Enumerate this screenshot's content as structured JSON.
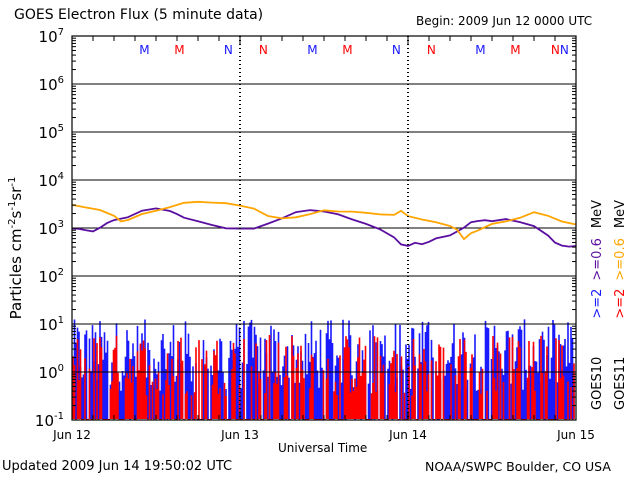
{
  "chart_data": {
    "type": "line",
    "title": "GOES Electron Flux (5 minute data)",
    "begin_label": "Begin: 2009 Jun 12 0000 UTC",
    "xlabel": "Universal Time",
    "ylabel": "Particles cm⁻²s⁻¹sr⁻¹",
    "ylabel_parts": {
      "base": "Particles cm",
      "e1": "-2",
      "s": "s",
      "e2": "-1",
      "sr": "sr",
      "e3": "-1"
    },
    "yscale": "log",
    "ylim_exp": [
      -1,
      7
    ],
    "ytick_exps": [
      7,
      6,
      5,
      4,
      3,
      2,
      1,
      0,
      -1
    ],
    "xlim_hours": [
      0,
      72
    ],
    "xtick_labels": [
      {
        "hour": 0,
        "label": "Jun 12"
      },
      {
        "hour": 24,
        "label": "Jun 13"
      },
      {
        "hour": 48,
        "label": "Jun 14"
      },
      {
        "hour": 72,
        "label": "Jun 15"
      }
    ],
    "threshold_line": {
      "value": 1000,
      "style": "dashed"
    },
    "grid": "horizontal lines at 10^0, 10^1, 10^2, 10^3, 10^4, 10^5, 10^6",
    "markers": [
      {
        "hour": 7.2,
        "label": "M",
        "color": "#1a1aff"
      },
      {
        "hour": 12.2,
        "label": "M",
        "color": "#ff0000"
      },
      {
        "hour": 19.2,
        "label": "N",
        "color": "#1a1aff"
      },
      {
        "hour": 24.2,
        "label": "N",
        "color": "#ff0000"
      },
      {
        "hour": 31.2,
        "label": "M",
        "color": "#1a1aff"
      },
      {
        "hour": 36.2,
        "label": "M",
        "color": "#ff0000"
      },
      {
        "hour": 43.2,
        "label": "N",
        "color": "#1a1aff"
      },
      {
        "hour": 48.2,
        "label": "N",
        "color": "#ff0000"
      },
      {
        "hour": 55.2,
        "label": "M",
        "color": "#1a1aff"
      },
      {
        "hour": 60.2,
        "label": "M",
        "color": "#ff0000"
      },
      {
        "hour": 67.2,
        "label": "N",
        "color": "#1a1aff"
      },
      {
        "hour": 72.2,
        "label": "N",
        "color": "#ff0000"
      }
    ],
    "series": [
      {
        "name": "GOES10 >=0.6 MeV",
        "color": "#5a0fa0",
        "x_hours": [
          0,
          1,
          2,
          3,
          4,
          5,
          6,
          8,
          10,
          12,
          14,
          15,
          16,
          18,
          20,
          22,
          24,
          26,
          28,
          30,
          32,
          34,
          35,
          36,
          38,
          40,
          42,
          44,
          46,
          47,
          48,
          49,
          50,
          51,
          52,
          54,
          56,
          57,
          58,
          59,
          60,
          62,
          64,
          66,
          68,
          69,
          70,
          71,
          72
        ],
        "y": [
          1000,
          950,
          870,
          850,
          1000,
          1300,
          1500,
          1700,
          2300,
          2500,
          2200,
          1900,
          1600,
          1350,
          1150,
          1000,
          950,
          980,
          1200,
          1600,
          2200,
          2400,
          2300,
          2150,
          1900,
          1500,
          1250,
          950,
          650,
          450,
          420,
          480,
          460,
          520,
          600,
          720,
          1000,
          1300,
          1400,
          1450,
          1400,
          1500,
          1300,
          1100,
          700,
          500,
          420,
          420,
          430
        ]
      },
      {
        "name": "GOES11 >=0.6 MeV",
        "color": "#ffa500",
        "x_hours": [
          0,
          2,
          4,
          6,
          7,
          8,
          10,
          12,
          14,
          16,
          18,
          20,
          22,
          24,
          26,
          28,
          30,
          32,
          34,
          36,
          38,
          40,
          42,
          44,
          46,
          47,
          48,
          50,
          52,
          54,
          55,
          56,
          57,
          58,
          60,
          62,
          64,
          66,
          68,
          70,
          72
        ],
        "y": [
          3000,
          2700,
          2300,
          1800,
          1350,
          1500,
          1900,
          2300,
          2800,
          3300,
          3500,
          3400,
          3200,
          3000,
          2500,
          1800,
          1600,
          1700,
          2000,
          2300,
          2200,
          2200,
          2100,
          1900,
          1900,
          2300,
          1800,
          1500,
          1300,
          1100,
          900,
          600,
          800,
          900,
          1200,
          1400,
          1600,
          2100,
          1800,
          1400,
          1200
        ]
      },
      {
        "name": "GOES10 >=2 MeV",
        "color": "#1a1aff",
        "style": "noisy-filled",
        "median_exp": 0.55,
        "range_exp": [
          -1,
          1.1
        ]
      },
      {
        "name": "GOES11 >=2 MeV",
        "color": "#ff0000",
        "style": "noisy-filled",
        "median_exp": -0.2,
        "range_exp": [
          -1,
          0.8
        ]
      }
    ]
  },
  "legend": {
    "goes10_label": "GOES10",
    "goes11_label": "GOES11",
    "goes10_2mev": ">=2",
    "goes11_2mev": ">=2",
    "goes10_06mev": ">=0.6",
    "goes11_06mev": ">=0.6",
    "unit": "MeV",
    "colors": {
      "goes10_2mev": "#1a1aff",
      "goes11_2mev": "#ff0000",
      "goes10_06mev": "#5a0fa0",
      "goes11_06mev": "#ffa500"
    }
  },
  "footer": {
    "updated": "Updated 2009 Jun 14 19:50:02 UTC",
    "credit": "NOAA/SWPC Boulder, CO USA"
  }
}
